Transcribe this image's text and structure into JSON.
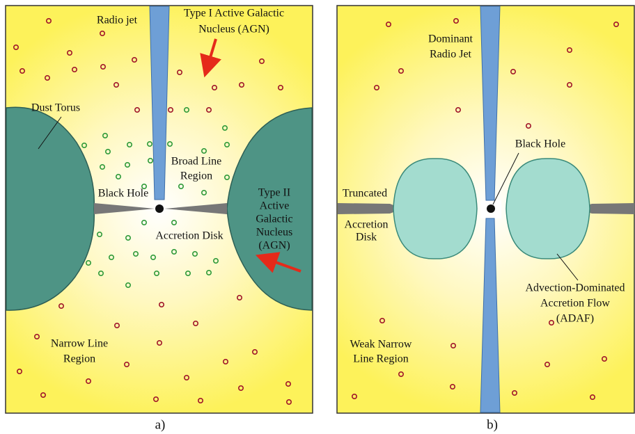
{
  "panels": [
    {
      "caption": "a)",
      "labels": [
        {
          "lines": [
            "Radio jet"
          ]
        },
        {
          "lines": [
            "Type I Active Galactic",
            "Nucleus (AGN)"
          ]
        },
        {
          "lines": [
            "Dust Torus"
          ]
        },
        {
          "lines": [
            "Broad Line",
            "Region"
          ]
        },
        {
          "lines": [
            "Black Hole"
          ]
        },
        {
          "lines": [
            "Type II",
            "Active",
            "Galactic",
            "Nucleus",
            "(AGN)"
          ]
        },
        {
          "lines": [
            "Accretion Disk"
          ]
        },
        {
          "lines": [
            "Narrow Line",
            "Region"
          ]
        }
      ]
    },
    {
      "caption": "b)",
      "labels": [
        {
          "lines": [
            "Dominant",
            "Radio Jet"
          ]
        },
        {
          "lines": [
            "Black Hole"
          ]
        },
        {
          "lines": [
            "Truncated"
          ]
        },
        {
          "lines": [
            "Accretion",
            "Disk"
          ]
        },
        {
          "lines": [
            "Advection-Dominated",
            "Accretion Flow",
            "(ADAF)"
          ]
        },
        {
          "lines": [
            "Weak Narrow",
            "Line Region"
          ]
        }
      ]
    }
  ]
}
